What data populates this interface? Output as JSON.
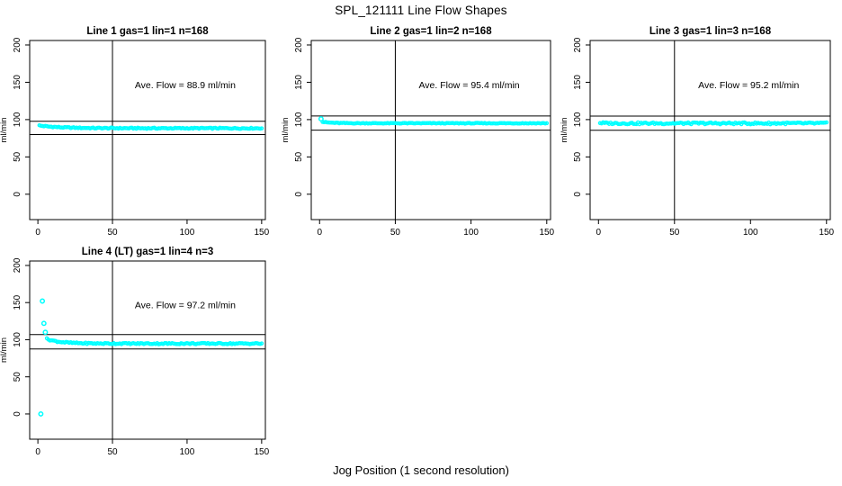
{
  "page": {
    "title": "SPL_121111  Line Flow Shapes",
    "x_axis_label": "Jog Position (1 second resolution)",
    "colors": {
      "background": "#ffffff",
      "points": "#00ffff",
      "axis": "#000000",
      "text": "#000000"
    }
  },
  "chart_data": [
    {
      "type": "scatter",
      "title": "Line 1 gas=1 lin=1 n=168",
      "line": 1,
      "gas": 1,
      "lin": 1,
      "n": 168,
      "annotation": "Ave. Flow =  88.9  ml/min",
      "ave_flow_ml_min": 88.9,
      "ylabel": "ml/min",
      "xlim": [
        -5.5,
        152.5
      ],
      "ylim": [
        -34,
        206
      ],
      "x_ticks": [
        0,
        50,
        100,
        150
      ],
      "y_ticks": [
        0,
        50,
        100,
        150,
        200
      ],
      "vline_x": 50,
      "hlines": [
        97.8,
        80.0
      ],
      "series": {
        "x_from": 1,
        "x_to": 150,
        "start_y": 92.0,
        "settle_y": 88.4,
        "tau": 14,
        "jitter": 0.7,
        "outliers": []
      }
    },
    {
      "type": "scatter",
      "title": "Line 2 gas=1 lin=2 n=168",
      "line": 2,
      "gas": 1,
      "lin": 2,
      "n": 168,
      "annotation": "Ave. Flow =  95.4  ml/min",
      "ave_flow_ml_min": 95.4,
      "ylabel": "ml/min",
      "xlim": [
        -5.5,
        152.5
      ],
      "ylim": [
        -34,
        206
      ],
      "x_ticks": [
        0,
        50,
        100,
        150
      ],
      "y_ticks": [
        0,
        50,
        100,
        150,
        200
      ],
      "vline_x": 50,
      "hlines": [
        104.9,
        85.9
      ],
      "series": {
        "x_from": 2,
        "x_to": 150,
        "start_y": 97.0,
        "settle_y": 95.1,
        "tau": 6,
        "jitter": 0.5,
        "outliers": [
          [
            1,
            101
          ]
        ]
      }
    },
    {
      "type": "scatter",
      "title": "Line 3 gas=1 lin=3 n=168",
      "line": 3,
      "gas": 1,
      "lin": 3,
      "n": 168,
      "annotation": "Ave. Flow =  95.2  ml/min",
      "ave_flow_ml_min": 95.2,
      "ylabel": "ml/min",
      "xlim": [
        -5.5,
        152.5
      ],
      "ylim": [
        -34,
        206
      ],
      "x_ticks": [
        0,
        50,
        100,
        150
      ],
      "y_ticks": [
        0,
        50,
        100,
        150,
        200
      ],
      "vline_x": 50,
      "hlines": [
        104.7,
        85.7
      ],
      "series": {
        "x_from": 1,
        "x_to": 150,
        "start_y": 95.5,
        "settle_y": 95.0,
        "tau": 5,
        "jitter": 1.3,
        "outliers": []
      }
    },
    {
      "type": "scatter",
      "title": "Line 4 (LT) gas=1 lin=4 n=3",
      "line": 4,
      "gas": 1,
      "lin": 4,
      "n": 3,
      "annotation": "Ave. Flow =  97.2  ml/min",
      "ave_flow_ml_min": 97.2,
      "ylabel": "ml/min",
      "xlim": [
        -5.5,
        152.5
      ],
      "ylim": [
        -34,
        206
      ],
      "x_ticks": [
        0,
        50,
        100,
        150
      ],
      "y_ticks": [
        0,
        50,
        100,
        150,
        200
      ],
      "vline_x": 50,
      "hlines": [
        106.9,
        87.5
      ],
      "series": {
        "x_from": 6,
        "x_to": 150,
        "start_y": 101.0,
        "settle_y": 94.8,
        "tau": 9,
        "jitter": 0.9,
        "outliers": [
          [
            2,
            0
          ],
          [
            3,
            152
          ],
          [
            4,
            122
          ],
          [
            5,
            110
          ]
        ]
      }
    }
  ]
}
